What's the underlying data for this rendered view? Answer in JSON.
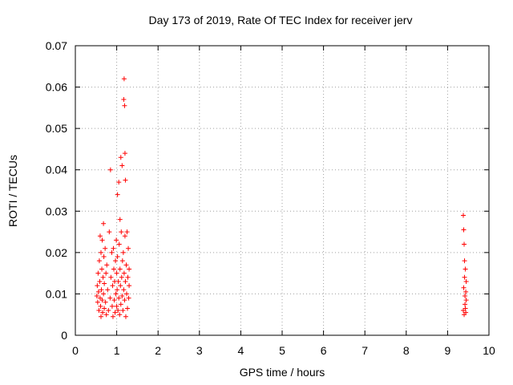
{
  "chart_data": {
    "type": "scatter",
    "title": "Day 173 of 2019, Rate Of TEC Index for receiver jerv",
    "xlabel": "GPS time / hours",
    "ylabel": "ROTI / TECUs",
    "xlim": [
      0,
      10
    ],
    "ylim": [
      0,
      0.07
    ],
    "xticks": [
      "0",
      "1",
      "2",
      "3",
      "4",
      "5",
      "6",
      "7",
      "8",
      "9",
      "10"
    ],
    "yticks": [
      "0",
      "0.01",
      "0.02",
      "0.03",
      "0.04",
      "0.05",
      "0.06",
      "0.07"
    ],
    "grid": true,
    "marker": "+",
    "color": "#ff0000",
    "series": [
      {
        "name": "ROTI",
        "points": [
          [
            0.52,
            0.0095
          ],
          [
            0.53,
            0.012
          ],
          [
            0.54,
            0.008
          ],
          [
            0.55,
            0.015
          ],
          [
            0.56,
            0.0105
          ],
          [
            0.57,
            0.006
          ],
          [
            0.58,
            0.018
          ],
          [
            0.59,
            0.013
          ],
          [
            0.6,
            0.009
          ],
          [
            0.6,
            0.024
          ],
          [
            0.61,
            0.007
          ],
          [
            0.62,
            0.02
          ],
          [
            0.62,
            0.0045
          ],
          [
            0.63,
            0.011
          ],
          [
            0.64,
            0.016
          ],
          [
            0.65,
            0.0085
          ],
          [
            0.65,
            0.023
          ],
          [
            0.66,
            0.0055
          ],
          [
            0.67,
            0.014
          ],
          [
            0.68,
            0.027
          ],
          [
            0.68,
            0.01
          ],
          [
            0.69,
            0.019
          ],
          [
            0.7,
            0.0065
          ],
          [
            0.7,
            0.0125
          ],
          [
            0.72,
            0.021
          ],
          [
            0.73,
            0.008
          ],
          [
            0.74,
            0.015
          ],
          [
            0.75,
            0.005
          ],
          [
            0.76,
            0.017
          ],
          [
            0.78,
            0.011
          ],
          [
            0.8,
            0.006
          ],
          [
            0.82,
            0.025
          ],
          [
            0.84,
            0.009
          ],
          [
            0.85,
            0.04
          ],
          [
            0.86,
            0.014
          ],
          [
            0.88,
            0.02
          ],
          [
            0.89,
            0.007
          ],
          [
            0.9,
            0.012
          ],
          [
            0.91,
            0.0045
          ],
          [
            0.92,
            0.021
          ],
          [
            0.93,
            0.016
          ],
          [
            0.94,
            0.0085
          ],
          [
            0.95,
            0.013
          ],
          [
            0.96,
            0.0055
          ],
          [
            0.97,
            0.018
          ],
          [
            0.98,
            0.01
          ],
          [
            0.99,
            0.023
          ],
          [
            1.0,
            0.007
          ],
          [
            1.0,
            0.015
          ],
          [
            1.01,
            0.011
          ],
          [
            1.02,
            0.034
          ],
          [
            1.02,
            0.019
          ],
          [
            1.03,
            0.006
          ],
          [
            1.04,
            0.013
          ],
          [
            1.05,
            0.037
          ],
          [
            1.05,
            0.009
          ],
          [
            1.06,
            0.022
          ],
          [
            1.07,
            0.005
          ],
          [
            1.08,
            0.028
          ],
          [
            1.08,
            0.016
          ],
          [
            1.09,
            0.012
          ],
          [
            1.1,
            0.043
          ],
          [
            1.1,
            0.0075
          ],
          [
            1.11,
            0.025
          ],
          [
            1.12,
            0.014
          ],
          [
            1.13,
            0.041
          ],
          [
            1.13,
            0.0095
          ],
          [
            1.14,
            0.018
          ],
          [
            1.15,
            0.006
          ],
          [
            1.16,
            0.02
          ],
          [
            1.17,
            0.057
          ],
          [
            1.17,
            0.011
          ],
          [
            1.18,
            0.062
          ],
          [
            1.18,
            0.015
          ],
          [
            1.19,
            0.0555
          ],
          [
            1.19,
            0.0085
          ],
          [
            1.2,
            0.044
          ],
          [
            1.2,
            0.024
          ],
          [
            1.21,
            0.0375
          ],
          [
            1.21,
            0.013
          ],
          [
            1.22,
            0.0045
          ],
          [
            1.23,
            0.017
          ],
          [
            1.24,
            0.01
          ],
          [
            1.25,
            0.025
          ],
          [
            1.26,
            0.0065
          ],
          [
            1.27,
            0.014
          ],
          [
            1.28,
            0.021
          ],
          [
            1.29,
            0.009
          ],
          [
            1.3,
            0.012
          ],
          [
            1.3,
            0.016
          ],
          [
            9.38,
            0.029
          ],
          [
            9.38,
            0.006
          ],
          [
            9.39,
            0.0255
          ],
          [
            9.39,
            0.0115
          ],
          [
            9.4,
            0.022
          ],
          [
            9.4,
            0.005
          ],
          [
            9.41,
            0.018
          ],
          [
            9.41,
            0.014
          ],
          [
            9.42,
            0.0095
          ],
          [
            9.42,
            0.0075
          ],
          [
            9.43,
            0.016
          ],
          [
            9.43,
            0.0065
          ],
          [
            9.44,
            0.0105
          ],
          [
            9.44,
            0.0055
          ],
          [
            9.45,
            0.013
          ],
          [
            9.45,
            0.0085
          ]
        ]
      }
    ]
  }
}
